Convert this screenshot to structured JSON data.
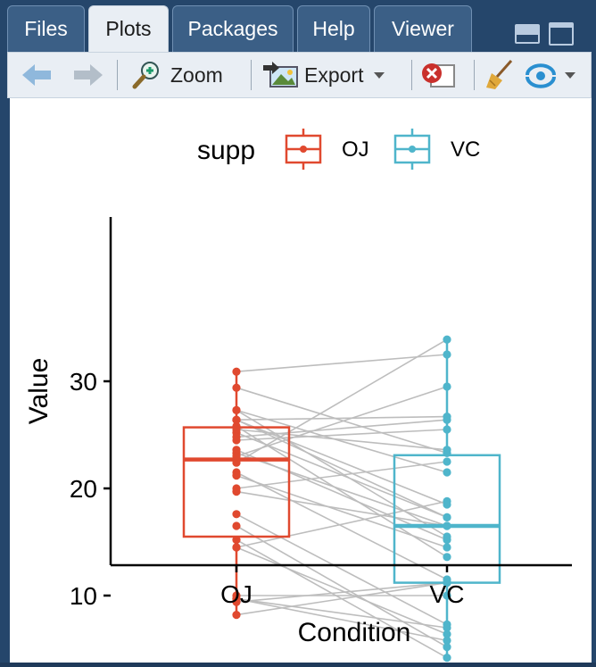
{
  "tabs": [
    {
      "label": "Files",
      "active": false
    },
    {
      "label": "Plots",
      "active": true
    },
    {
      "label": "Packages",
      "active": false
    },
    {
      "label": "Help",
      "active": false
    },
    {
      "label": "Viewer",
      "active": false
    }
  ],
  "toolbar": {
    "back_icon": "arrow-left-icon",
    "forward_icon": "arrow-right-icon",
    "zoom_label": "Zoom",
    "export_label": "Export",
    "remove_icon": "remove-plot-icon",
    "clear_icon": "broom-icon",
    "publish_icon": "publish-icon"
  },
  "colors": {
    "oj": "#E0492F",
    "vc": "#4FB5CB",
    "lines": "#BDBDBD"
  },
  "chart_data": {
    "type": "boxplot-paired",
    "title": "",
    "xlabel": "Condition",
    "ylabel": "Value",
    "categories": [
      "OJ",
      "VC"
    ],
    "yticks": [
      10,
      20,
      30
    ],
    "legend": {
      "title": "supp",
      "position": "top",
      "entries": [
        "OJ",
        "VC"
      ]
    },
    "boxes": [
      {
        "name": "OJ",
        "min": 8.2,
        "q1": 15.5,
        "median": 22.7,
        "q3": 25.7,
        "max": 30.9
      },
      {
        "name": "VC",
        "min": 4.2,
        "q1": 11.2,
        "median": 16.5,
        "q3": 23.1,
        "max": 33.9
      }
    ],
    "pairs": [
      [
        15.2,
        4.2
      ],
      [
        21.5,
        11.5
      ],
      [
        17.6,
        7.3
      ],
      [
        9.7,
        5.8
      ],
      [
        14.5,
        6.4
      ],
      [
        10.0,
        10.0
      ],
      [
        8.2,
        11.2
      ],
      [
        9.4,
        11.2
      ],
      [
        16.5,
        5.2
      ],
      [
        9.7,
        7.0
      ],
      [
        19.7,
        16.5
      ],
      [
        23.3,
        16.5
      ],
      [
        23.6,
        15.2
      ],
      [
        26.4,
        17.3
      ],
      [
        20.0,
        22.5
      ],
      [
        25.2,
        17.3
      ],
      [
        25.8,
        13.6
      ],
      [
        21.2,
        14.5
      ],
      [
        14.5,
        18.8
      ],
      [
        27.3,
        15.5
      ],
      [
        25.5,
        23.6
      ],
      [
        26.4,
        18.5
      ],
      [
        22.4,
        33.9
      ],
      [
        24.5,
        25.5
      ],
      [
        24.8,
        26.4
      ],
      [
        30.9,
        32.5
      ],
      [
        26.4,
        26.7
      ],
      [
        27.3,
        21.5
      ],
      [
        29.4,
        23.3
      ],
      [
        23.0,
        29.5
      ]
    ]
  }
}
